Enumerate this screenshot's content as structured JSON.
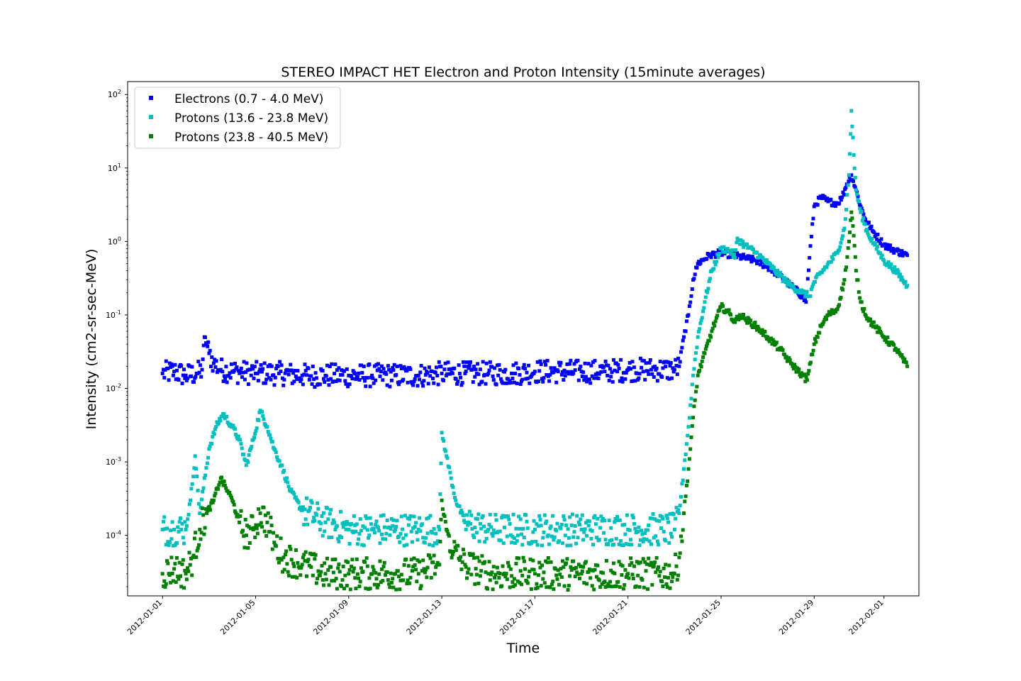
{
  "chart_data": {
    "type": "scatter",
    "title": "STEREO IMPACT HET Electron and Proton Intensity (15minute averages)",
    "xlabel": "Time",
    "ylabel": "Intensity (cm2-sr-sec-MeV)",
    "yscale": "log",
    "ylim": [
      1.5e-05,
      150
    ],
    "xlim_days": [
      -1.5,
      32.5
    ],
    "yticks": [
      {
        "base": "10",
        "exp": "-4",
        "value": 0.0001
      },
      {
        "base": "10",
        "exp": "-3",
        "value": 0.001
      },
      {
        "base": "10",
        "exp": "-2",
        "value": 0.01
      },
      {
        "base": "10",
        "exp": "-1",
        "value": 0.1
      },
      {
        "base": "10",
        "exp": "0",
        "value": 1
      },
      {
        "base": "10",
        "exp": "1",
        "value": 10
      },
      {
        "base": "10",
        "exp": "2",
        "value": 100
      }
    ],
    "xticks": [
      {
        "label": "2012-01-01",
        "day": 0
      },
      {
        "label": "2012-01-05",
        "day": 4
      },
      {
        "label": "2012-01-09",
        "day": 8
      },
      {
        "label": "2012-01-13",
        "day": 12
      },
      {
        "label": "2012-01-17",
        "day": 16
      },
      {
        "label": "2012-01-21",
        "day": 20
      },
      {
        "label": "2012-01-25",
        "day": 24
      },
      {
        "label": "2012-01-29",
        "day": 28
      },
      {
        "label": "2012-02-01",
        "day": 31
      }
    ],
    "legend_position": "top-left",
    "grid": false,
    "series": [
      {
        "name": "Electrons (0.7 - 4.0 MeV)",
        "color": "#0000ff",
        "points": [
          [
            0.0,
            0.016
          ],
          [
            0.5,
            0.017
          ],
          [
            1.0,
            0.015
          ],
          [
            1.5,
            0.016
          ],
          [
            1.7,
            0.018
          ],
          [
            1.8,
            0.05
          ],
          [
            1.9,
            0.04
          ],
          [
            2.0,
            0.03
          ],
          [
            2.2,
            0.022
          ],
          [
            2.5,
            0.018
          ],
          [
            3.0,
            0.017
          ],
          [
            4.0,
            0.016
          ],
          [
            5.0,
            0.016
          ],
          [
            6.0,
            0.015
          ],
          [
            7.0,
            0.015
          ],
          [
            8.0,
            0.015
          ],
          [
            9.0,
            0.015
          ],
          [
            10.0,
            0.015
          ],
          [
            11.0,
            0.015
          ],
          [
            12.0,
            0.016
          ],
          [
            13.0,
            0.016
          ],
          [
            14.0,
            0.016
          ],
          [
            15.0,
            0.016
          ],
          [
            16.0,
            0.017
          ],
          [
            17.0,
            0.017
          ],
          [
            18.0,
            0.017
          ],
          [
            19.0,
            0.017
          ],
          [
            20.0,
            0.018
          ],
          [
            21.0,
            0.018
          ],
          [
            22.0,
            0.018
          ],
          [
            22.2,
            0.02
          ],
          [
            22.4,
            0.05
          ],
          [
            22.6,
            0.1
          ],
          [
            22.8,
            0.3
          ],
          [
            23.0,
            0.5
          ],
          [
            23.5,
            0.65
          ],
          [
            24.0,
            0.7
          ],
          [
            24.5,
            0.65
          ],
          [
            25.0,
            0.6
          ],
          [
            25.5,
            0.55
          ],
          [
            26.0,
            0.45
          ],
          [
            26.5,
            0.35
          ],
          [
            27.0,
            0.25
          ],
          [
            27.5,
            0.18
          ],
          [
            27.65,
            0.15
          ],
          [
            27.8,
            0.6
          ],
          [
            28.0,
            3.0
          ],
          [
            28.3,
            4.0
          ],
          [
            28.6,
            3.5
          ],
          [
            29.0,
            3.3
          ],
          [
            29.2,
            4.0
          ],
          [
            29.4,
            6.0
          ],
          [
            29.6,
            8.0
          ],
          [
            29.8,
            5.0
          ],
          [
            30.0,
            3.0
          ],
          [
            30.2,
            2.0
          ],
          [
            30.5,
            1.4
          ],
          [
            31.0,
            0.9
          ],
          [
            31.5,
            0.75
          ],
          [
            32.0,
            0.65
          ]
        ]
      },
      {
        "name": "Protons (13.6 - 23.8 MeV)",
        "color": "#00bfbf",
        "points": [
          [
            0.0,
            0.00012
          ],
          [
            0.5,
            0.00012
          ],
          [
            1.0,
            0.00012
          ],
          [
            1.2,
            0.0003
          ],
          [
            1.4,
            0.0012
          ],
          [
            1.6,
            0.0002
          ],
          [
            2.0,
            0.0015
          ],
          [
            2.3,
            0.003
          ],
          [
            2.6,
            0.0045
          ],
          [
            3.0,
            0.003
          ],
          [
            3.3,
            0.002
          ],
          [
            3.6,
            0.0009
          ],
          [
            3.9,
            0.002
          ],
          [
            4.2,
            0.005
          ],
          [
            4.5,
            0.003
          ],
          [
            4.8,
            0.0015
          ],
          [
            5.1,
            0.0009
          ],
          [
            5.5,
            0.0004
          ],
          [
            6.0,
            0.00022
          ],
          [
            7.0,
            0.00015
          ],
          [
            8.0,
            0.00012
          ],
          [
            9.0,
            0.00012
          ],
          [
            10.0,
            0.00012
          ],
          [
            11.0,
            0.00012
          ],
          [
            11.9,
            0.00012
          ],
          [
            12.0,
            0.0025
          ],
          [
            12.2,
            0.0012
          ],
          [
            12.4,
            0.0006
          ],
          [
            12.6,
            0.0003
          ],
          [
            13.0,
            0.00015
          ],
          [
            14.0,
            0.00012
          ],
          [
            16.0,
            0.00012
          ],
          [
            18.0,
            0.00012
          ],
          [
            20.0,
            0.00012
          ],
          [
            22.0,
            0.00012
          ],
          [
            22.2,
            0.0002
          ],
          [
            22.4,
            0.0008
          ],
          [
            22.6,
            0.003
          ],
          [
            22.8,
            0.015
          ],
          [
            23.0,
            0.05
          ],
          [
            23.3,
            0.15
          ],
          [
            23.6,
            0.4
          ],
          [
            24.0,
            0.8
          ],
          [
            24.4,
            0.75
          ],
          [
            24.6,
            0.6
          ],
          [
            24.7,
            1.1
          ],
          [
            25.0,
            0.9
          ],
          [
            25.5,
            0.7
          ],
          [
            26.0,
            0.5
          ],
          [
            26.5,
            0.35
          ],
          [
            27.0,
            0.25
          ],
          [
            27.5,
            0.2
          ],
          [
            27.8,
            0.18
          ],
          [
            28.0,
            0.28
          ],
          [
            28.5,
            0.45
          ],
          [
            29.0,
            0.7
          ],
          [
            29.3,
            1.5
          ],
          [
            29.5,
            8.0
          ],
          [
            29.6,
            60.0
          ],
          [
            29.7,
            15.0
          ],
          [
            29.8,
            5.0
          ],
          [
            30.0,
            2.5
          ],
          [
            30.3,
            1.3
          ],
          [
            30.6,
            0.9
          ],
          [
            31.0,
            0.55
          ],
          [
            31.5,
            0.4
          ],
          [
            32.0,
            0.25
          ]
        ]
      },
      {
        "name": "Protons (23.8 - 40.5 MeV)",
        "color": "#008000",
        "points": [
          [
            0.0,
            3e-05
          ],
          [
            0.5,
            3.5e-05
          ],
          [
            1.0,
            3e-05
          ],
          [
            1.3,
            5e-05
          ],
          [
            1.6,
            0.00012
          ],
          [
            1.9,
            0.0002
          ],
          [
            2.2,
            0.0003
          ],
          [
            2.5,
            0.0006
          ],
          [
            2.8,
            0.0004
          ],
          [
            3.0,
            0.0003
          ],
          [
            3.3,
            0.00015
          ],
          [
            3.6,
            0.0001
          ],
          [
            3.9,
            0.00012
          ],
          [
            4.2,
            0.0002
          ],
          [
            4.5,
            0.00015
          ],
          [
            4.8,
            8e-05
          ],
          [
            5.2,
            5e-05
          ],
          [
            6.0,
            4e-05
          ],
          [
            7.0,
            3e-05
          ],
          [
            8.0,
            3e-05
          ],
          [
            9.0,
            3e-05
          ],
          [
            10.0,
            3e-05
          ],
          [
            11.0,
            3e-05
          ],
          [
            11.9,
            4e-05
          ],
          [
            12.0,
            0.0003
          ],
          [
            12.2,
            0.00012
          ],
          [
            12.5,
            6e-05
          ],
          [
            13.0,
            4e-05
          ],
          [
            14.0,
            3e-05
          ],
          [
            16.0,
            3e-05
          ],
          [
            18.0,
            3e-05
          ],
          [
            20.0,
            3e-05
          ],
          [
            22.0,
            3e-05
          ],
          [
            22.2,
            5e-05
          ],
          [
            22.4,
            0.0002
          ],
          [
            22.6,
            0.0008
          ],
          [
            22.8,
            0.004
          ],
          [
            23.0,
            0.015
          ],
          [
            23.3,
            0.03
          ],
          [
            23.6,
            0.06
          ],
          [
            24.0,
            0.13
          ],
          [
            24.3,
            0.11
          ],
          [
            24.6,
            0.08
          ],
          [
            24.8,
            0.1
          ],
          [
            25.0,
            0.09
          ],
          [
            25.5,
            0.07
          ],
          [
            26.0,
            0.05
          ],
          [
            26.5,
            0.035
          ],
          [
            27.0,
            0.022
          ],
          [
            27.5,
            0.015
          ],
          [
            27.7,
            0.013
          ],
          [
            28.0,
            0.04
          ],
          [
            28.3,
            0.07
          ],
          [
            28.6,
            0.1
          ],
          [
            29.0,
            0.12
          ],
          [
            29.3,
            0.3
          ],
          [
            29.5,
            1.0
          ],
          [
            29.6,
            2.5
          ],
          [
            29.7,
            1.2
          ],
          [
            29.8,
            0.4
          ],
          [
            30.0,
            0.15
          ],
          [
            30.3,
            0.09
          ],
          [
            30.6,
            0.07
          ],
          [
            31.0,
            0.05
          ],
          [
            31.5,
            0.035
          ],
          [
            32.0,
            0.02
          ]
        ]
      }
    ]
  }
}
